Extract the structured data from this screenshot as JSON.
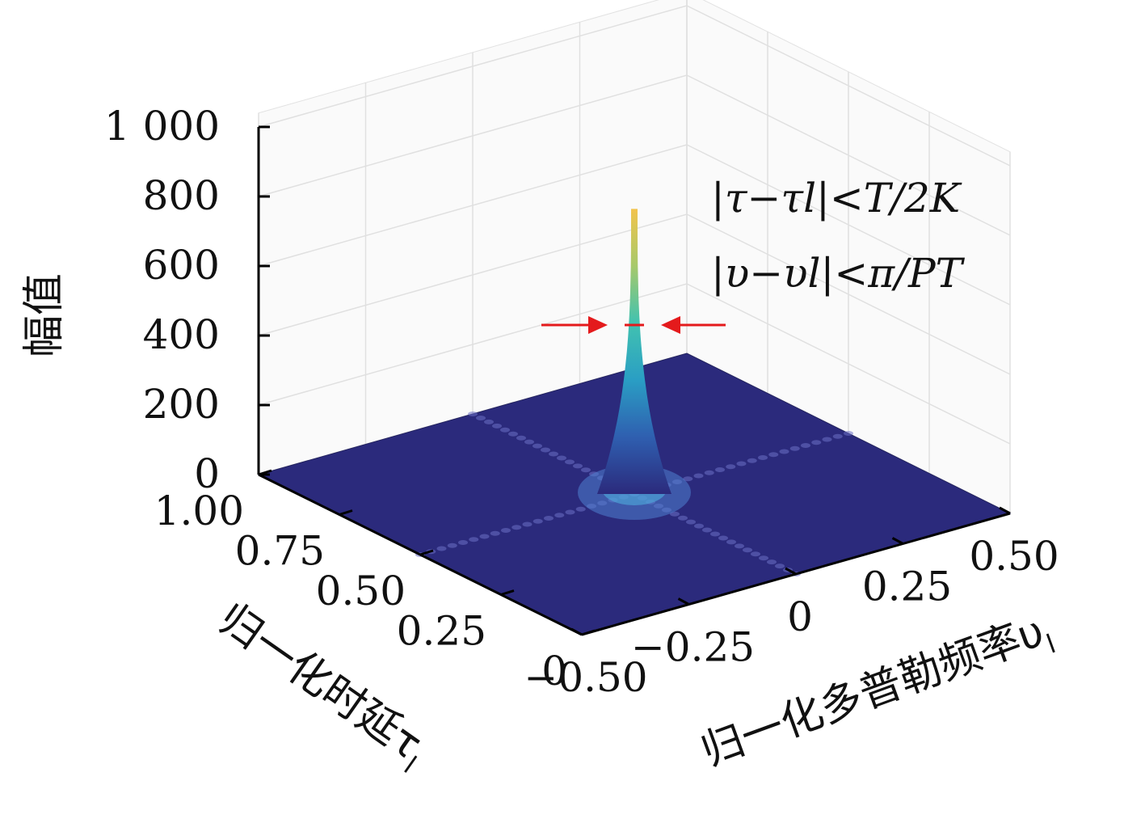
{
  "chart_data": {
    "type": "surface",
    "title": "",
    "zlabel": "幅值",
    "xlabel": "归一化时延τ",
    "xlabel_sub": "l",
    "ylabel": "归一化多普勒频率υ",
    "ylabel_sub": "l",
    "z_ticks": [
      "0",
      "200",
      "400",
      "600",
      "800",
      "1 000"
    ],
    "z_tick_values": [
      0,
      200,
      400,
      600,
      800,
      1000
    ],
    "zlim": [
      0,
      1000
    ],
    "delay_ticks": [
      "0",
      "0.25",
      "0.50",
      "0.75",
      "1.00"
    ],
    "delay_tick_values": [
      0,
      0.25,
      0.5,
      0.75,
      1.0
    ],
    "xlim": [
      0,
      1.0
    ],
    "doppler_ticks": [
      "−0.50",
      "−0.25",
      "0",
      "0.25",
      "0.50"
    ],
    "doppler_tick_values": [
      -0.5,
      -0.25,
      0,
      0.25,
      0.5
    ],
    "ylim": [
      -0.5,
      0.5
    ],
    "peak": {
      "delay": 0.5,
      "doppler": 0,
      "amplitude": 820
    },
    "grid": true,
    "colormap": [
      "#2b2a7c",
      "#2f5fb0",
      "#2a9ec4",
      "#41c2b0",
      "#a7c96a",
      "#f2c44c"
    ],
    "annotations": [
      {
        "text": "|τ−τl|<T/2K"
      },
      {
        "text": "|υ−υl|<π/PT"
      }
    ],
    "marker_color": "#e41a1c"
  }
}
